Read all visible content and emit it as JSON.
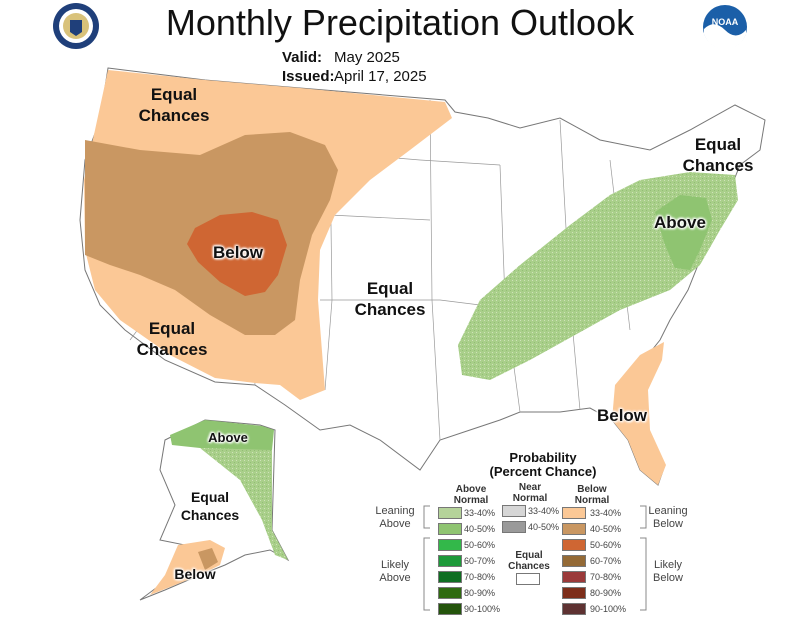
{
  "header": {
    "title": "Monthly Precipitation Outlook",
    "valid_label": "Valid:",
    "valid_value": "May 2025",
    "issued_label": "Issued:",
    "issued_value": "April 17, 2025"
  },
  "logos": {
    "left": "doc-seal",
    "right": "noaa-logo",
    "noaa_text": "NOAA"
  },
  "regions": {
    "nw": "Equal\nChances",
    "sw": "Equal\nChances",
    "central": "Equal\nChances",
    "ne": "Equal\nChances",
    "west_below": "Below",
    "east_above": "Above",
    "se_below": "Below",
    "ak_above": "Above",
    "ak_equal": "Equal\nChances",
    "ak_below": "Below"
  },
  "legend": {
    "title": "Probability\n(Percent Chance)",
    "above_head": "Above\nNormal",
    "near_head": "Near\nNormal",
    "below_head": "Below\nNormal",
    "leaning_above": "Leaning\nAbove",
    "leaning_below": "Leaning\nBelow",
    "likely_above": "Likely\nAbove",
    "likely_below": "Likely\nBelow",
    "equal_chances": "Equal\nChances",
    "above": [
      {
        "range": "33-40%",
        "color": "#b5d39a"
      },
      {
        "range": "40-50%",
        "color": "#8fc471"
      },
      {
        "range": "50-60%",
        "color": "#33b84a"
      },
      {
        "range": "60-70%",
        "color": "#1d9a3a"
      },
      {
        "range": "70-80%",
        "color": "#0f6e22"
      },
      {
        "range": "80-90%",
        "color": "#2f6a10"
      },
      {
        "range": "90-100%",
        "color": "#24540c"
      }
    ],
    "near": [
      {
        "range": "33-40%",
        "color": "#d6d6d6"
      },
      {
        "range": "40-50%",
        "color": "#9a9a9a"
      }
    ],
    "below": [
      {
        "range": "33-40%",
        "color": "#fbc896"
      },
      {
        "range": "40-50%",
        "color": "#c99762"
      },
      {
        "range": "50-60%",
        "color": "#cf6633"
      },
      {
        "range": "60-70%",
        "color": "#946a36"
      },
      {
        "range": "70-80%",
        "color": "#9b3a3a"
      },
      {
        "range": "80-90%",
        "color": "#7d2e1a"
      },
      {
        "range": "90-100%",
        "color": "#5e3232"
      }
    ]
  }
}
